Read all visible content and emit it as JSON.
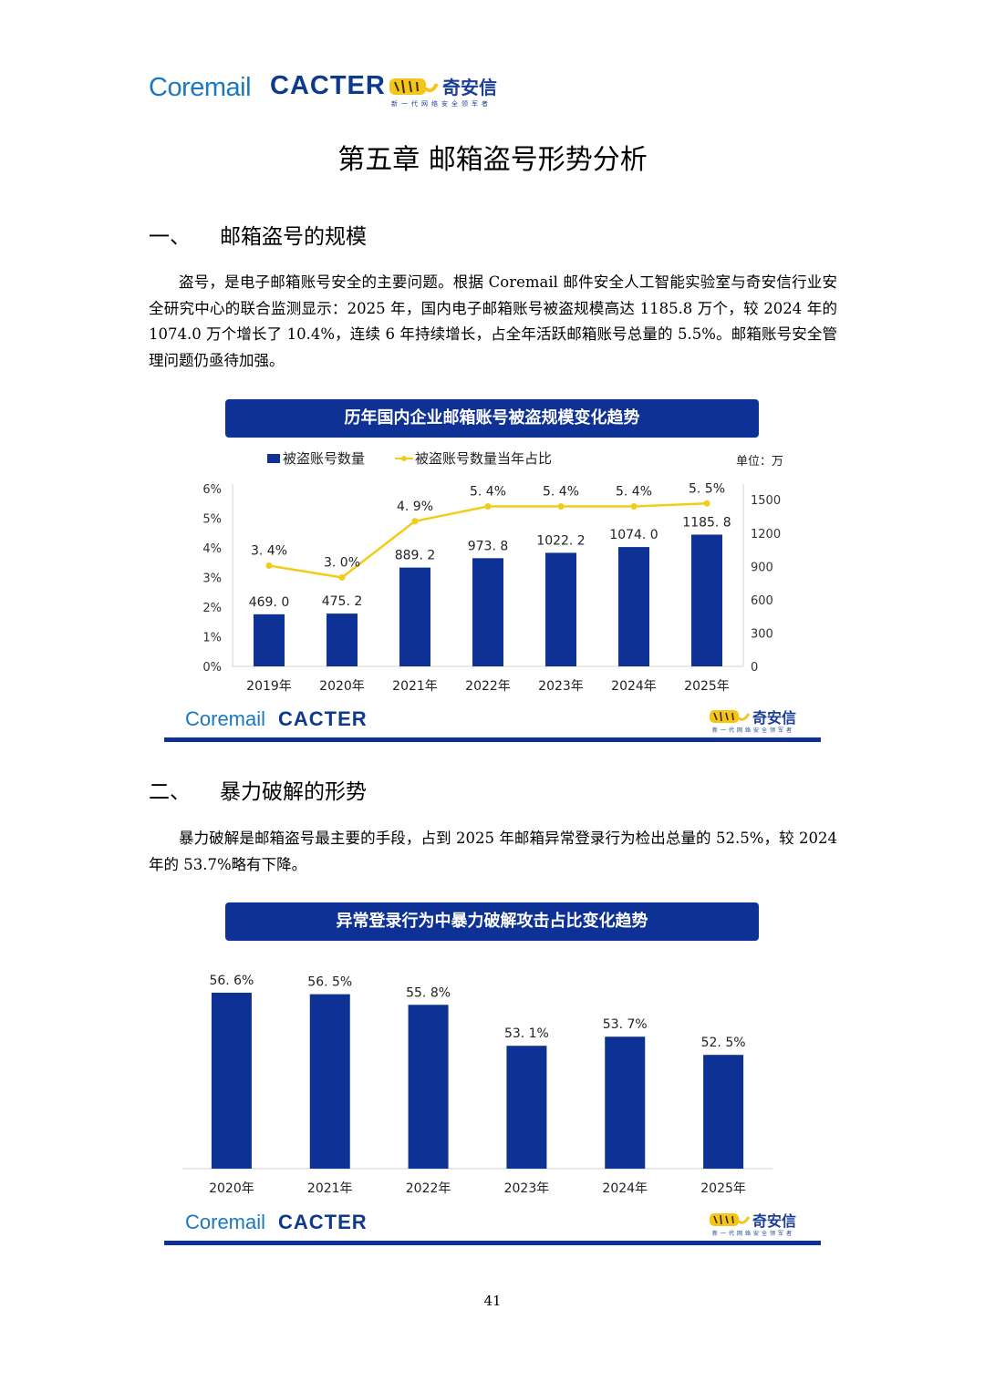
{
  "header": {
    "logo_coremail": "Coremail",
    "logo_cacter": "CACTER",
    "logo_qax": "奇安信",
    "logo_qax_tagline": "新一代网络安全领军者"
  },
  "chapter_title": "第五章  邮箱盗号形势分析",
  "section1": {
    "num": "一、",
    "title": "邮箱盗号的规模"
  },
  "para1": "盗号，是电子邮箱账号安全的主要问题。根据 Coremail 邮件安全人工智能实验室与奇安信行业安全研究中心的联合监测显示：2025 年，国内电子邮箱账号被盗规模高达 1185.8 万个，较 2024 年的 1074.0 万个增长了 10.4%，连续 6 年持续增长，占全年活跃邮箱账号总量的 5.5%。邮箱账号安全管理问题仍亟待加强。",
  "section2": {
    "num": "二、",
    "title": "暴力破解的形势"
  },
  "para2": "暴力破解是邮箱盗号最主要的手段，占到 2025 年邮箱异常登录行为检出总量的 52.5%，较 2024 年的 53.7%略有下降。",
  "chart_data": [
    {
      "type": "bar",
      "title": "历年国内企业邮箱账号被盗规模变化趋势",
      "unit_label": "单位：万",
      "categories": [
        "2019年",
        "2020年",
        "2021年",
        "2022年",
        "2023年",
        "2024年",
        "2025年"
      ],
      "series": [
        {
          "name": "被盗账号数量",
          "type": "bar",
          "axis": "right",
          "values": [
            469.0,
            475.2,
            889.2,
            973.8,
            1022.2,
            1074.0,
            1185.8
          ],
          "labels": [
            "469. 0",
            "475. 2",
            "889. 2",
            "973. 8",
            "1022. 2",
            "1074. 0",
            "1185. 8"
          ]
        },
        {
          "name": "被盗账号数量当年占比",
          "type": "line",
          "axis": "left",
          "values": [
            3.4,
            3.0,
            4.9,
            5.4,
            5.4,
            5.4,
            5.5
          ],
          "labels": [
            "3. 4%",
            "3. 0%",
            "4. 9%",
            "5. 4%",
            "5. 4%",
            "5. 4%",
            "5. 5%"
          ]
        }
      ],
      "left_axis": {
        "ticks": [
          "0%",
          "1%",
          "2%",
          "3%",
          "4%",
          "5%",
          "6%"
        ],
        "ylim": [
          0,
          6
        ]
      },
      "right_axis": {
        "ticks": [
          "0",
          "300",
          "600",
          "900",
          "1200",
          "1500"
        ],
        "ylim": [
          0,
          1600
        ]
      },
      "colors": {
        "bar": "#0d3194",
        "line": "#f2cc1a"
      },
      "grid": false,
      "legend": "top-left"
    },
    {
      "type": "bar",
      "title": "异常登录行为中暴力破解攻击占比变化趋势",
      "categories": [
        "2020年",
        "2021年",
        "2022年",
        "2023年",
        "2024年",
        "2025年"
      ],
      "values": [
        56.6,
        56.5,
        55.8,
        53.1,
        53.7,
        52.5
      ],
      "labels": [
        "56. 6%",
        "56. 5%",
        "55. 8%",
        "53. 1%",
        "53. 7%",
        "52. 5%"
      ],
      "colors": {
        "bar": "#0d3194"
      },
      "grid": false
    }
  ],
  "chart_footer": {
    "coremail": "Coremail",
    "cacter": "CACTER",
    "qax": "奇安信",
    "qax_tagline": "新一代网络安全领军者"
  },
  "page_number": "41"
}
